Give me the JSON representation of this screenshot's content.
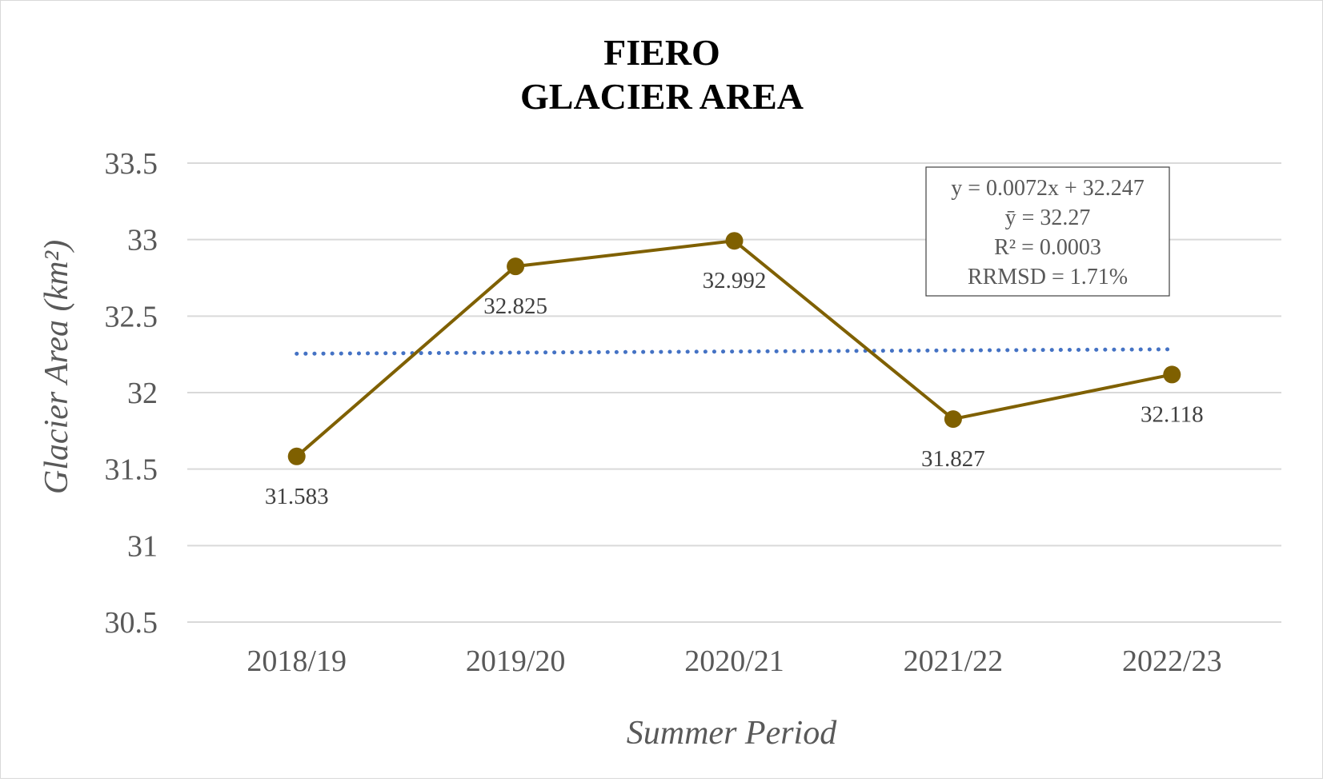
{
  "chart_data": {
    "type": "line",
    "title": [
      "FIERO",
      "GLACIER AREA"
    ],
    "xlabel": "Summer Period",
    "ylabel": "Glacier Area (km²)",
    "categories": [
      "2018/19",
      "2019/20",
      "2020/21",
      "2021/22",
      "2022/23"
    ],
    "series": [
      {
        "values": [
          31.583,
          32.825,
          32.992,
          31.827,
          32.118
        ],
        "data_labels": [
          "31.583",
          "32.825",
          "32.992",
          "31.827",
          "32.118"
        ],
        "color": "#7f6000"
      }
    ],
    "trendline": {
      "slope": 0.0072,
      "intercept": 32.247,
      "style": "dotted",
      "color": "#4472c4"
    },
    "ylim": [
      30.5,
      33.5
    ],
    "yticks": [
      "30.5",
      "31",
      "31.5",
      "32",
      "32.5",
      "33",
      "33.5"
    ],
    "grid": true,
    "legend": "none",
    "annotation_box": {
      "lines": [
        "y = 0.0072x + 32.247",
        "ȳ = 32.27",
        "R² = 0.0003",
        "RRMSD = 1.71%"
      ],
      "placement": "top-right"
    }
  }
}
